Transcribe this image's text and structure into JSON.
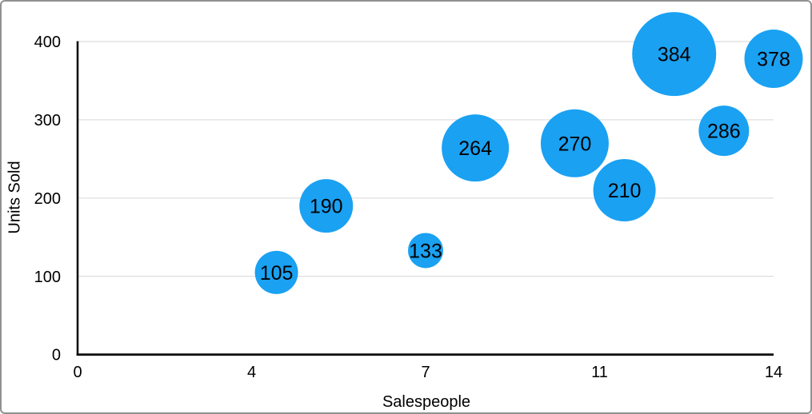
{
  "chart_data": {
    "type": "bubble",
    "title": "",
    "xlabel": "Salespeople",
    "ylabel": "Units Sold",
    "xlim": [
      0,
      14
    ],
    "ylim": [
      0,
      400
    ],
    "grid": "horizontal-gridlines-only",
    "legend": "none",
    "x_ticks": [
      {
        "value": 0,
        "label": "0"
      },
      {
        "value": 3.5,
        "label": "4"
      },
      {
        "value": 7,
        "label": "7"
      },
      {
        "value": 10.5,
        "label": "11"
      },
      {
        "value": 14,
        "label": "14"
      }
    ],
    "y_ticks": [
      {
        "value": 0,
        "label": "0"
      },
      {
        "value": 100,
        "label": "100"
      },
      {
        "value": 200,
        "label": "200"
      },
      {
        "value": 300,
        "label": "300"
      },
      {
        "value": 400,
        "label": "400"
      }
    ],
    "series": [
      {
        "name": "Units Sold",
        "color": "#1AA1F2",
        "points": [
          {
            "x": 4,
            "y": 105,
            "label": "105",
            "radius_px": 27
          },
          {
            "x": 5,
            "y": 190,
            "label": "190",
            "radius_px": 33.5
          },
          {
            "x": 7,
            "y": 133,
            "label": "133",
            "radius_px": 22
          },
          {
            "x": 8,
            "y": 264,
            "label": "264",
            "radius_px": 42
          },
          {
            "x": 10,
            "y": 270,
            "label": "270",
            "radius_px": 42.5
          },
          {
            "x": 11,
            "y": 210,
            "label": "210",
            "radius_px": 39
          },
          {
            "x": 12,
            "y": 384,
            "label": "384",
            "radius_px": 52.5
          },
          {
            "x": 13,
            "y": 286,
            "label": "286",
            "radius_px": 31.5
          },
          {
            "x": 14,
            "y": 378,
            "label": "378",
            "radius_px": 36.5
          }
        ]
      }
    ],
    "colors": {
      "bubble": "#1AA1F2",
      "bubble_label": "#000000",
      "gridline": "#D6D6D6",
      "axis_line": "#111111",
      "tick_label": "#000000",
      "axis_title": "#000000",
      "frame_border": "#919191",
      "background": "#FFFFFF"
    }
  }
}
